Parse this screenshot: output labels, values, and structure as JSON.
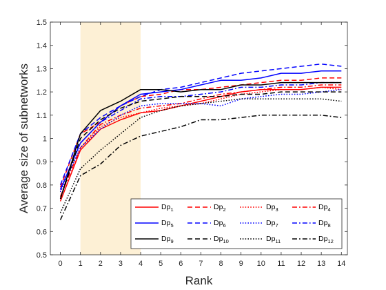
{
  "chart_data": {
    "type": "line",
    "xlabel": "Rank",
    "ylabel": "Average size of subnetworks",
    "xlim": [
      -0.5,
      14.3
    ],
    "ylim": [
      0.5,
      1.5
    ],
    "xticks": [
      "0",
      "1",
      "2",
      "3",
      "4",
      "5",
      "6",
      "7",
      "8",
      "9",
      "10",
      "11",
      "12",
      "13",
      "14"
    ],
    "yticks": [
      "0.5",
      "0.6",
      "0.7",
      "0.8",
      "0.9",
      "1",
      "1.1",
      "1.2",
      "1.3",
      "1.4",
      "1.5"
    ],
    "grid": false,
    "legend_placement": "bottom-right",
    "highlight_band": {
      "x_from": 1,
      "x_to": 4,
      "color": "#fdf0d5"
    },
    "x": [
      0,
      1,
      2,
      3,
      4,
      5,
      6,
      7,
      8,
      9,
      10,
      11,
      12,
      13,
      14
    ],
    "series": [
      {
        "name": "Dp",
        "sub": "1",
        "color": "#ff0000",
        "dash": "solid",
        "values": [
          0.73,
          0.95,
          1.04,
          1.08,
          1.11,
          1.12,
          1.14,
          1.16,
          1.18,
          1.2,
          1.21,
          1.21,
          1.21,
          1.22,
          1.22
        ]
      },
      {
        "name": "Dp",
        "sub": "2",
        "color": "#ff0000",
        "dash": "dashed",
        "values": [
          0.79,
          1.02,
          1.07,
          1.14,
          1.18,
          1.19,
          1.21,
          1.21,
          1.22,
          1.23,
          1.24,
          1.25,
          1.25,
          1.26,
          1.26
        ]
      },
      {
        "name": "Dp",
        "sub": "3",
        "color": "#ff0000",
        "dash": "dotted",
        "values": [
          0.77,
          0.96,
          1.05,
          1.09,
          1.11,
          1.13,
          1.14,
          1.15,
          1.17,
          1.19,
          1.2,
          1.21,
          1.21,
          1.22,
          1.21
        ]
      },
      {
        "name": "Dp",
        "sub": "4",
        "color": "#ff0000",
        "dash": "dashdot",
        "values": [
          0.75,
          0.96,
          1.06,
          1.1,
          1.13,
          1.14,
          1.15,
          1.17,
          1.19,
          1.2,
          1.21,
          1.22,
          1.22,
          1.23,
          1.23
        ]
      },
      {
        "name": "Dp",
        "sub": "5",
        "color": "#0000ff",
        "dash": "solid",
        "values": [
          0.78,
          0.98,
          1.07,
          1.14,
          1.19,
          1.2,
          1.21,
          1.23,
          1.25,
          1.25,
          1.26,
          1.28,
          1.28,
          1.29,
          1.29
        ]
      },
      {
        "name": "Dp",
        "sub": "6",
        "color": "#0000ff",
        "dash": "dashed",
        "values": [
          0.8,
          1.02,
          1.09,
          1.14,
          1.18,
          1.21,
          1.22,
          1.24,
          1.26,
          1.28,
          1.29,
          1.3,
          1.31,
          1.32,
          1.31
        ]
      },
      {
        "name": "Dp",
        "sub": "7",
        "color": "#0000ff",
        "dash": "dotted",
        "values": [
          0.77,
          0.96,
          1.04,
          1.1,
          1.14,
          1.15,
          1.15,
          1.15,
          1.14,
          1.17,
          1.18,
          1.19,
          1.19,
          1.2,
          1.21
        ]
      },
      {
        "name": "Dp",
        "sub": "8",
        "color": "#0000ff",
        "dash": "dashdot",
        "values": [
          0.78,
          0.98,
          1.07,
          1.12,
          1.17,
          1.18,
          1.18,
          1.19,
          1.2,
          1.22,
          1.22,
          1.23,
          1.23,
          1.24,
          1.24
        ]
      },
      {
        "name": "Dp",
        "sub": "9",
        "color": "#000000",
        "dash": "solid",
        "values": [
          0.74,
          1.02,
          1.12,
          1.16,
          1.21,
          1.21,
          1.2,
          1.21,
          1.21,
          1.23,
          1.23,
          1.24,
          1.24,
          1.24,
          1.24
        ]
      },
      {
        "name": "Dp",
        "sub": "10",
        "color": "#000000",
        "dash": "dashed",
        "values": [
          0.74,
          1.0,
          1.08,
          1.13,
          1.16,
          1.17,
          1.18,
          1.18,
          1.18,
          1.19,
          1.19,
          1.2,
          1.2,
          1.2,
          1.2
        ]
      },
      {
        "name": "Dp",
        "sub": "11",
        "color": "#000000",
        "dash": "dotted",
        "values": [
          0.68,
          0.87,
          0.95,
          1.02,
          1.09,
          1.12,
          1.14,
          1.15,
          1.16,
          1.17,
          1.17,
          1.17,
          1.17,
          1.17,
          1.16
        ]
      },
      {
        "name": "Dp",
        "sub": "12",
        "color": "#000000",
        "dash": "dashdot",
        "values": [
          0.65,
          0.84,
          0.89,
          0.97,
          1.01,
          1.03,
          1.05,
          1.08,
          1.08,
          1.09,
          1.1,
          1.1,
          1.1,
          1.1,
          1.09
        ]
      }
    ]
  }
}
